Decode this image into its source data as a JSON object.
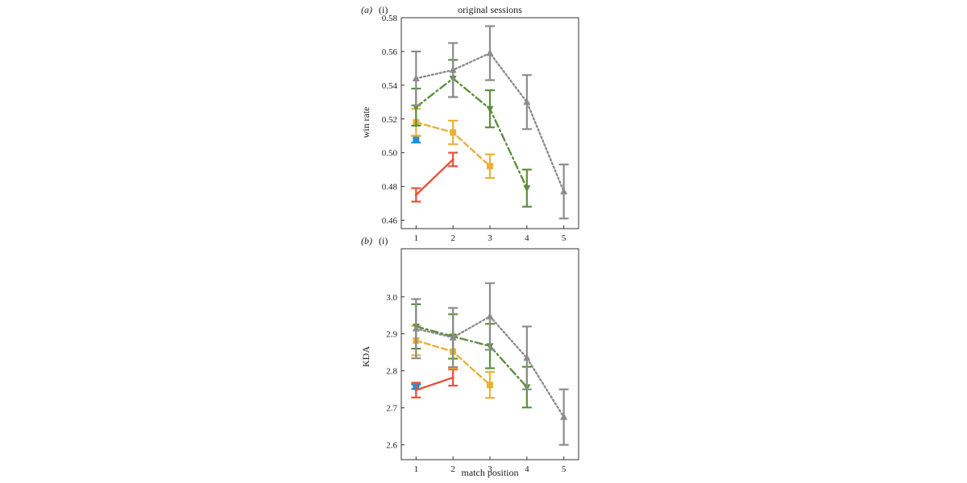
{
  "chart_data": [
    {
      "type": "line",
      "panel_label": "(a)",
      "panel_sub": "(i)",
      "title": "original sessions",
      "xlabel": "",
      "ylabel": "win rate",
      "xlim": [
        0.6,
        5.4
      ],
      "ylim": [
        0.455,
        0.58
      ],
      "xticks": [
        "1",
        "2",
        "3",
        "4",
        "5"
      ],
      "yticks": [
        "0.46",
        "0.48",
        "0.50",
        "0.52",
        "0.54",
        "0.56",
        "0.58"
      ],
      "grid": false,
      "series": [
        {
          "color": "#1f8fd6",
          "style": "none",
          "marker": "square",
          "x": [
            1
          ],
          "y": [
            0.508
          ],
          "err": [
            0.002
          ]
        },
        {
          "color": "#e6533a",
          "style": "solid",
          "marker": "none",
          "x": [
            1,
            2
          ],
          "y": [
            0.475,
            0.496
          ],
          "err": [
            0.004,
            0.004
          ]
        },
        {
          "color": "#e8b13a",
          "style": "dashed",
          "marker": "square",
          "x": [
            1,
            2,
            3
          ],
          "y": [
            0.518,
            0.512,
            0.492
          ],
          "err": [
            0.008,
            0.007,
            0.007
          ]
        },
        {
          "color": "#5d8f3c",
          "style": "dashdot",
          "marker": "triangle-down",
          "x": [
            1,
            2,
            3,
            4
          ],
          "y": [
            0.527,
            0.544,
            0.526,
            0.479
          ],
          "err": [
            0.011,
            0.011,
            0.011,
            0.011
          ]
        },
        {
          "color": "#8c8c8c",
          "style": "dotted",
          "marker": "triangle-up",
          "x": [
            1,
            2,
            3,
            4,
            5
          ],
          "y": [
            0.544,
            0.549,
            0.559,
            0.53,
            0.477
          ],
          "err": [
            0.016,
            0.016,
            0.016,
            0.016,
            0.016
          ]
        }
      ]
    },
    {
      "type": "line",
      "panel_label": "(b)",
      "panel_sub": "(i)",
      "title": "",
      "xlabel": "match position",
      "ylabel": "KDA",
      "xlim": [
        0.6,
        5.4
      ],
      "ylim": [
        2.56,
        3.13
      ],
      "xticks": [
        "1",
        "2",
        "3",
        "4",
        "5"
      ],
      "yticks": [
        "2.6",
        "2.7",
        "2.8",
        "2.9",
        "3.0"
      ],
      "grid": false,
      "series": [
        {
          "color": "#1f8fd6",
          "style": "none",
          "marker": "square",
          "x": [
            1
          ],
          "y": [
            2.757
          ],
          "err": [
            0.006
          ]
        },
        {
          "color": "#e6533a",
          "style": "solid",
          "marker": "none",
          "x": [
            1,
            2
          ],
          "y": [
            2.748,
            2.782
          ],
          "err": [
            0.02,
            0.022
          ]
        },
        {
          "color": "#e8b13a",
          "style": "dashed",
          "marker": "square",
          "x": [
            1,
            2,
            3
          ],
          "y": [
            2.882,
            2.852,
            2.762
          ],
          "err": [
            0.04,
            0.045,
            0.035
          ]
        },
        {
          "color": "#5d8f3c",
          "style": "dashdot",
          "marker": "triangle-down",
          "x": [
            1,
            2,
            3,
            4
          ],
          "y": [
            2.92,
            2.893,
            2.867,
            2.756
          ],
          "err": [
            0.06,
            0.06,
            0.06,
            0.055
          ]
        },
        {
          "color": "#8c8c8c",
          "style": "dotted",
          "marker": "triangle-up",
          "x": [
            1,
            2,
            3,
            4,
            5
          ],
          "y": [
            2.914,
            2.89,
            2.947,
            2.835,
            2.675
          ],
          "err": [
            0.08,
            0.08,
            0.09,
            0.085,
            0.075
          ]
        }
      ]
    }
  ]
}
